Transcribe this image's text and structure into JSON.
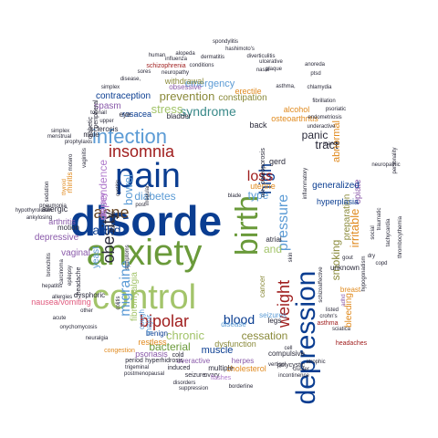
{
  "palette": {
    "blue": "#0a3d91",
    "sky": "#5b9bd5",
    "green": "#6a9a3a",
    "light_green": "#a3c46a",
    "red": "#a01e1e",
    "pink": "#e05a7e",
    "orange": "#e08a1e",
    "purple": "#8a5aaa",
    "lavender": "#b07acc",
    "teal": "#3a8a8a",
    "brown": "#6a4a2a",
    "dark": "#2a2a3a",
    "olive": "#8a8a3a",
    "magenta": "#cc3a8a"
  },
  "words": [
    {
      "text": "disorde",
      "color": "blue"
    },
    {
      "text": "anxiety",
      "color": "green"
    },
    {
      "text": "depression",
      "color": "blue"
    },
    {
      "text": "control",
      "color": "light_green"
    },
    {
      "text": "pain",
      "color": "blue"
    },
    {
      "text": "birth",
      "color": "green"
    },
    {
      "text": "infection",
      "color": "sky"
    },
    {
      "text": "insomnia",
      "color": "red"
    },
    {
      "text": "bipolar",
      "color": "red"
    },
    {
      "text": "acne",
      "color": "brown"
    },
    {
      "text": "obesity",
      "color": "dark"
    },
    {
      "text": "migraine",
      "color": "sky"
    },
    {
      "text": "high",
      "color": "blue"
    },
    {
      "text": "weight",
      "color": "red"
    },
    {
      "text": "pressure",
      "color": "sky"
    },
    {
      "text": "blood",
      "color": "blue"
    },
    {
      "text": "syndrome",
      "color": "teal"
    },
    {
      "text": "loss",
      "color": "red"
    },
    {
      "text": "prevention",
      "color": "olive"
    },
    {
      "text": "stress",
      "color": "light_green"
    },
    {
      "text": "adhd",
      "color": "blue"
    },
    {
      "text": "chronic",
      "color": "light_green"
    },
    {
      "text": "bacterial",
      "color": "green"
    },
    {
      "text": "cessation",
      "color": "olive"
    },
    {
      "text": "smoking",
      "color": "olive"
    },
    {
      "text": "tract",
      "color": "dark"
    },
    {
      "text": "panic",
      "color": "dark"
    },
    {
      "text": "muscle",
      "color": "blue"
    },
    {
      "text": "diabetes",
      "color": "sky"
    },
    {
      "text": "bowel",
      "color": "sky"
    },
    {
      "text": "fibromyalgia",
      "color": "light_green"
    },
    {
      "text": "type",
      "color": "sky"
    },
    {
      "text": "and",
      "color": "light_green"
    },
    {
      "text": "emergency",
      "color": "sky"
    },
    {
      "text": "contraception",
      "color": "blue"
    },
    {
      "text": "constipation",
      "color": "olive"
    },
    {
      "text": "spasm",
      "color": "purple"
    },
    {
      "text": "irritable",
      "color": "orange"
    },
    {
      "text": "dependence",
      "color": "lavender"
    },
    {
      "text": "urinary",
      "color": "lavender"
    },
    {
      "text": "yeast",
      "color": "sky"
    },
    {
      "text": "arthritis",
      "color": "purple"
    },
    {
      "text": "depressive",
      "color": "purple"
    },
    {
      "text": "vaginal",
      "color": "purple"
    },
    {
      "text": "preparation",
      "color": "olive"
    },
    {
      "text": "opiate",
      "color": "purple"
    },
    {
      "text": "generalized",
      "color": "blue"
    },
    {
      "text": "abnormal",
      "color": "orange"
    },
    {
      "text": "bleeding",
      "color": "orange"
    },
    {
      "text": "nausea/vomiting",
      "color": "pink"
    },
    {
      "text": "psoriasis",
      "color": "purple"
    },
    {
      "text": "restless",
      "color": "orange"
    },
    {
      "text": "dysfunction",
      "color": "olive"
    },
    {
      "text": "disease",
      "color": "sky"
    },
    {
      "text": "seizures",
      "color": "sky"
    },
    {
      "text": "compulsive",
      "color": "dark"
    },
    {
      "text": "hyperplasia",
      "color": "blue"
    },
    {
      "text": "unknown",
      "color": "dark"
    },
    {
      "text": "osteoarthritis",
      "color": "orange"
    },
    {
      "text": "alcohol",
      "color": "orange"
    },
    {
      "text": "erectile",
      "color": "orange"
    },
    {
      "text": "withdrawal",
      "color": "olive"
    },
    {
      "text": "obsessive",
      "color": "purple"
    },
    {
      "text": "rosacea",
      "color": "blue"
    },
    {
      "text": "eye",
      "color": "dark"
    },
    {
      "text": "bladder",
      "color": "dark"
    },
    {
      "text": "uterine",
      "color": "orange"
    },
    {
      "text": "gerd",
      "color": "dark"
    },
    {
      "text": "back",
      "color": "dark"
    },
    {
      "text": "atrial",
      "color": "dark"
    },
    {
      "text": "legs",
      "color": "dark"
    },
    {
      "text": "cancer",
      "color": "olive"
    },
    {
      "text": "benign",
      "color": "blue"
    },
    {
      "text": "major",
      "color": "sky"
    },
    {
      "text": "cough",
      "color": "sky"
    },
    {
      "text": "herpes",
      "color": "purple"
    },
    {
      "text": "cholesterol",
      "color": "orange"
    },
    {
      "text": "polycystic",
      "color": "dark"
    },
    {
      "text": "multiple",
      "color": "dark"
    },
    {
      "text": "overactive",
      "color": "purple"
    },
    {
      "text": "induced",
      "color": "dark"
    },
    {
      "text": "hyperhidrosis",
      "color": "dark"
    },
    {
      "text": "period",
      "color": "dark"
    },
    {
      "text": "cold",
      "color": "dark"
    },
    {
      "text": "congestion",
      "color": "orange"
    },
    {
      "text": "seizure",
      "color": "dark"
    },
    {
      "text": "ovary",
      "color": "dark"
    },
    {
      "text": "flashes",
      "color": "lavender"
    },
    {
      "text": "disorders",
      "color": "dark"
    },
    {
      "text": "suppression",
      "color": "dark"
    },
    {
      "text": "borderline",
      "color": "dark"
    },
    {
      "text": "postmenopausal",
      "color": "dark"
    },
    {
      "text": "trigeminal",
      "color": "dark"
    },
    {
      "text": "incontinence",
      "color": "dark"
    },
    {
      "text": "atrophic",
      "color": "dark"
    },
    {
      "text": "cluster",
      "color": "dark"
    },
    {
      "text": "headaches",
      "color": "red"
    },
    {
      "text": "sciatica",
      "color": "dark"
    },
    {
      "text": "asthma",
      "color": "red"
    },
    {
      "text": "crohn's",
      "color": "dark"
    },
    {
      "text": "listed",
      "color": "dark"
    },
    {
      "text": "schizoaffective",
      "color": "dark"
    },
    {
      "text": "adhd",
      "color": "purple"
    },
    {
      "text": "breast",
      "color": "orange"
    },
    {
      "text": "hypogonadism",
      "color": "dark"
    },
    {
      "text": "social",
      "color": "dark"
    },
    {
      "text": "traumatic",
      "color": "dark"
    },
    {
      "text": "tachycardia",
      "color": "dark"
    },
    {
      "text": "thrombocythemia",
      "color": "dark"
    },
    {
      "text": "copd",
      "color": "dark"
    },
    {
      "text": "dry",
      "color": "dark"
    },
    {
      "text": "gout",
      "color": "dark"
    },
    {
      "text": "neuropathic",
      "color": "dark"
    },
    {
      "text": "personality",
      "color": "dark"
    },
    {
      "text": "mance",
      "color": "dark"
    },
    {
      "text": "underactive",
      "color": "dark"
    },
    {
      "text": "endometriosis",
      "color": "dark"
    },
    {
      "text": "fibrillation",
      "color": "dark"
    },
    {
      "text": "psoriatic",
      "color": "dark"
    },
    {
      "text": "chlamydia",
      "color": "dark"
    },
    {
      "text": "asthma,",
      "color": "dark"
    },
    {
      "text": "anoreda",
      "color": "dark"
    },
    {
      "text": "plaque",
      "color": "dark"
    },
    {
      "text": "ulcerative",
      "color": "dark"
    },
    {
      "text": "diverticulitis",
      "color": "dark"
    },
    {
      "text": "hashimoto's",
      "color": "dark"
    },
    {
      "text": "spondylitis",
      "color": "dark"
    },
    {
      "text": "alopeda",
      "color": "dark"
    },
    {
      "text": "dermatitis",
      "color": "dark"
    },
    {
      "text": "influenza",
      "color": "dark"
    },
    {
      "text": "human",
      "color": "dark"
    },
    {
      "text": "schizophrenia",
      "color": "red"
    },
    {
      "text": "conditions",
      "color": "dark"
    },
    {
      "text": "sores",
      "color": "dark"
    },
    {
      "text": "neuropathy",
      "color": "dark"
    },
    {
      "text": "disease,",
      "color": "dark"
    },
    {
      "text": "simplex",
      "color": "dark"
    },
    {
      "text": "toenail",
      "color": "dark"
    },
    {
      "text": "upper",
      "color": "dark"
    },
    {
      "text": "simplex",
      "color": "dark"
    },
    {
      "text": "menstrual",
      "color": "dark"
    },
    {
      "text": "prophylaxis",
      "color": "dark"
    },
    {
      "text": "diabetic",
      "color": "dark"
    },
    {
      "text": "peripheral",
      "color": "dark"
    },
    {
      "text": "sclerosis",
      "color": "dark"
    },
    {
      "text": "male",
      "color": "dark"
    },
    {
      "text": "vaginitis",
      "color": "dark"
    },
    {
      "text": "allergic",
      "color": "dark"
    },
    {
      "text": "rhinitis",
      "color": "orange"
    },
    {
      "text": "thyroid",
      "color": "orange"
    },
    {
      "text": "pneumonia",
      "color": "dark"
    },
    {
      "text": "sedation",
      "color": "dark"
    },
    {
      "text": "hypothyroidism",
      "color": "dark"
    },
    {
      "text": "ankylosing",
      "color": "dark"
    },
    {
      "text": "motion",
      "color": "dark"
    },
    {
      "text": "bronchitis",
      "color": "dark"
    },
    {
      "text": "carcinoma",
      "color": "dark"
    },
    {
      "text": "epilepsy",
      "color": "dark"
    },
    {
      "text": "headache",
      "color": "dark"
    },
    {
      "text": "hepatitis",
      "color": "dark"
    },
    {
      "text": "allergies",
      "color": "dark"
    },
    {
      "text": "dysphoric",
      "color": "dark"
    },
    {
      "text": "acute",
      "color": "dark"
    },
    {
      "text": "onychomycosis",
      "color": "dark"
    },
    {
      "text": "neuralgia",
      "color": "dark"
    },
    {
      "text": "colitis",
      "color": "dark"
    },
    {
      "text": "symptoms",
      "color": "dark"
    },
    {
      "text": "bacterial",
      "color": "dark"
    },
    {
      "text": "cystitis",
      "color": "dark"
    },
    {
      "text": "irregular",
      "color": "dark"
    },
    {
      "text": "blade",
      "color": "dark"
    },
    {
      "text": "post",
      "color": "dark"
    },
    {
      "text": "not",
      "color": "dark"
    },
    {
      "text": "skin",
      "color": "dark"
    },
    {
      "text": "vertigo",
      "color": "dark"
    },
    {
      "text": "ptsd",
      "color": "dark"
    },
    {
      "text": "osteoporosis",
      "color": "dark"
    },
    {
      "text": "inflammatory",
      "color": "dark"
    },
    {
      "text": "nasal",
      "color": "dark"
    },
    {
      "text": "cell",
      "color": "dark"
    },
    {
      "text": "other",
      "color": "dark"
    },
    {
      "text": "motero",
      "color": "dark"
    },
    {
      "text": "pylori",
      "color": "dark"
    }
  ]
}
